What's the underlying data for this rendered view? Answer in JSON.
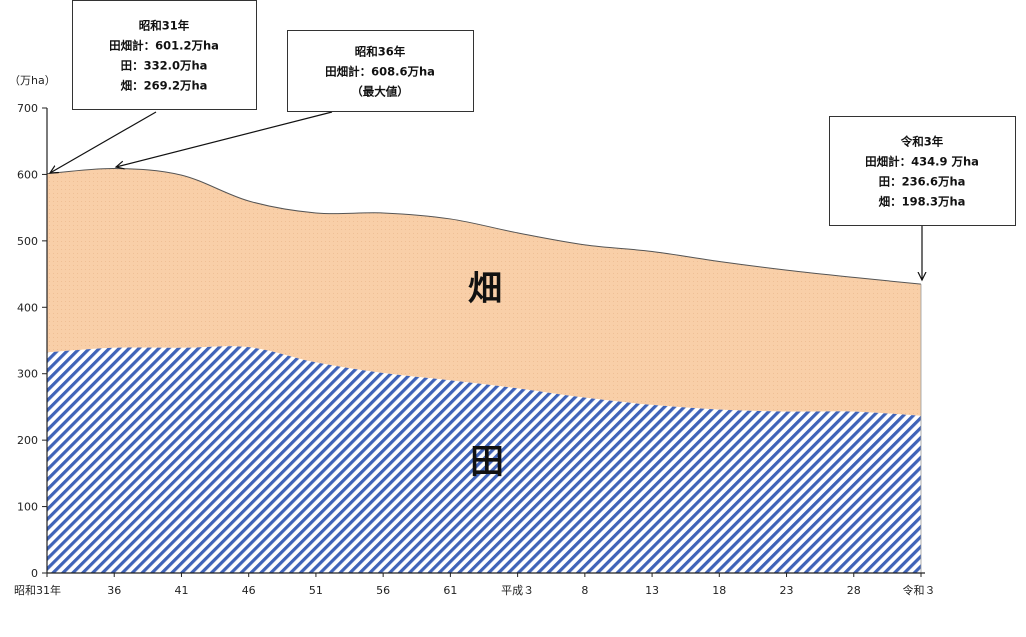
{
  "chart_data": {
    "type": "area",
    "title": "",
    "xlabel": "",
    "ylabel": "（万ha）",
    "ylim": [
      0,
      700
    ],
    "yticks": [
      0,
      100,
      200,
      300,
      400,
      500,
      600,
      700
    ],
    "grid": false,
    "x_tick_labels": [
      "昭和31年",
      "36",
      "41",
      "46",
      "51",
      "56",
      "61",
      "平成３",
      "8",
      "13",
      "18",
      "23",
      "28",
      "令和３"
    ],
    "x": [
      "昭和31年",
      "36",
      "41",
      "46",
      "51",
      "56",
      "61",
      "平成３",
      "8",
      "13",
      "18",
      "23",
      "28",
      "令和３"
    ],
    "series": [
      {
        "name": "田",
        "values": [
          332.0,
          339,
          339,
          340,
          317,
          301,
          290,
          278,
          264,
          253,
          246,
          243,
          243,
          236.6
        ]
      },
      {
        "name": "畑",
        "values": [
          269.2,
          270,
          260,
          220,
          225,
          241,
          243,
          234,
          230,
          231,
          223,
          213,
          202,
          198.3
        ]
      }
    ],
    "totals": [
      601.2,
      609,
      599,
      560,
      542,
      542,
      533,
      512,
      494,
      484,
      469,
      456,
      445,
      434.9
    ],
    "colors": {
      "paddy": "#3f63b8",
      "upland": "#f9cfa8",
      "outline": "#555555"
    },
    "annotations": [
      {
        "lines": [
          "昭和31年",
          "田畑計：601.2万ha",
          "田：332.0万ha",
          "畑：269.2万ha"
        ]
      },
      {
        "lines": [
          "昭和36年",
          "田畑計：608.6万ha",
          "（最大値）"
        ]
      },
      {
        "lines": [
          "令和3年",
          "田畑計：434.9 万ha",
          "田：236.6万ha",
          "畑：198.3万ha"
        ]
      }
    ]
  }
}
